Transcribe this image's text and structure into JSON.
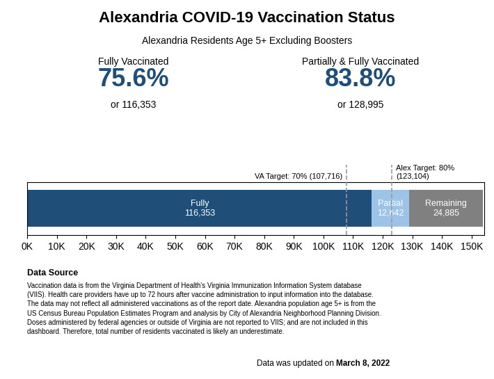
{
  "chart_data": {
    "type": "bar",
    "orientation": "horizontal",
    "stacked": true,
    "data_labels": true,
    "tick_labels": "x",
    "title": "Alexandria COVID-19 Vaccination Status",
    "subtitle": "Alexandria Residents Age 5+ Excluding Boosters",
    "categories": [
      null
    ],
    "series": [
      {
        "name": "Fully",
        "color": "#1f4e79",
        "values": [
          116353
        ],
        "value_labels": [
          "116,353"
        ]
      },
      {
        "name": "Partial",
        "color": "#9dc3e6",
        "values": [
          12642
        ],
        "value_labels": [
          "12,642"
        ]
      },
      {
        "name": "Remaining",
        "color": "#808080",
        "values": [
          24885
        ],
        "value_labels": [
          "24,885"
        ]
      }
    ],
    "xlim": [
      0,
      154238
    ],
    "xticks": [
      {
        "value": 0,
        "label": "0K"
      },
      {
        "value": 10000,
        "label": "10K"
      },
      {
        "value": 20000,
        "label": "20K"
      },
      {
        "value": 30000,
        "label": "30K"
      },
      {
        "value": 40000,
        "label": "40K"
      },
      {
        "value": 50000,
        "label": "50K"
      },
      {
        "value": 60000,
        "label": "60K"
      },
      {
        "value": 70000,
        "label": "70K"
      },
      {
        "value": 80000,
        "label": "80K"
      },
      {
        "value": 90000,
        "label": "90K"
      },
      {
        "value": 100000,
        "label": "100K"
      },
      {
        "value": 110000,
        "label": "110K"
      },
      {
        "value": 120000,
        "label": "120K"
      },
      {
        "value": 130000,
        "label": "130K"
      },
      {
        "value": 140000,
        "label": "140K"
      },
      {
        "value": 150000,
        "label": "150K"
      }
    ],
    "reference_lines": [
      {
        "value": 107716,
        "label": "VA Target: 70% (107,716)",
        "color": "#999999"
      },
      {
        "value": 123104,
        "label": "Alex Target: 80%\n(123,104)",
        "color": "#999999"
      }
    ],
    "stats": [
      {
        "label": "Fully Vaccinated",
        "value": 75.6,
        "value_label": "75.6%",
        "note": "or 116,353",
        "color": "#1f4e79"
      },
      {
        "label": "Partially & Fully Vaccinated",
        "value": 83.8,
        "value_label": "83.8%",
        "note": "or 128,995",
        "color": "#1f4e79"
      }
    ],
    "source_title": "Data Source",
    "source_text": "Vaccination data is from the Virginia Department of Health's Virginia Immunization Information System database\n(VIIS). Health care providers have up to 72 hours after vaccine administration to input information into the database.\nThe data may not reflect all administered vaccinations as of the report date. Alexandria population age 5+ is from the\nUS Census Bureau Population Estimates Program and analysis by City of Alexandria Neighborhood Planning Division.\nDoses administered by federal agencies or outside of Virginia are not reported to VIIS; and are not included in this\ndashboard. Therefore, total number of residents vaccinated is likely an underestimate.",
    "update_text": "Data was updated on ",
    "update_date": "March 8, 2022"
  }
}
